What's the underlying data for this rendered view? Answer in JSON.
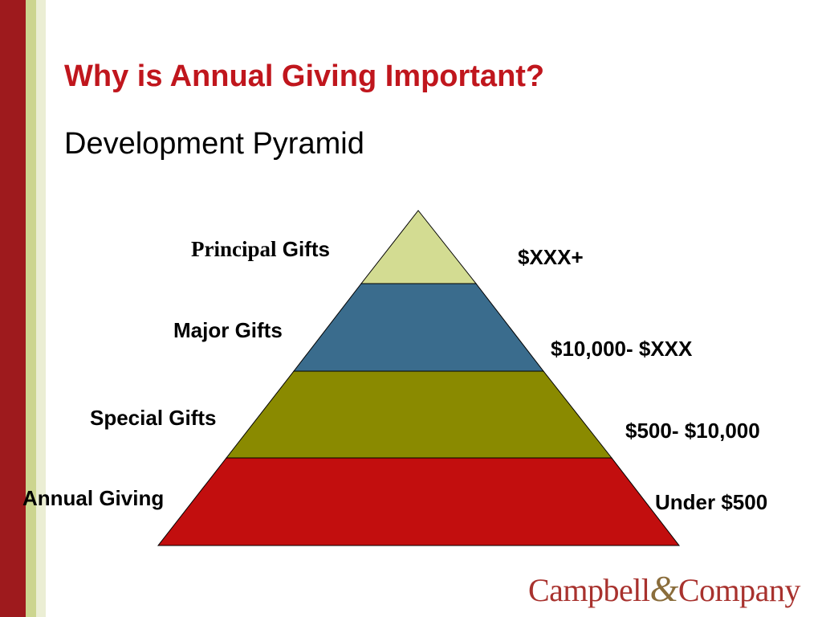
{
  "slide": {
    "title": "Why is Annual Giving Important?",
    "subtitle": "Development Pyramid"
  },
  "pyramid": {
    "tiers": [
      {
        "name": "Principal",
        "name_suffix": " Gifts",
        "range": "$XXX+",
        "color": "#d3dc92"
      },
      {
        "name": "Major Gifts",
        "range": "$10,000- $XXX",
        "color": "#3a6c8d"
      },
      {
        "name": "Special Gifts",
        "range": "$500- $10,000",
        "color": "#8a8a00"
      },
      {
        "name": "Annual Giving",
        "range": "Under $500",
        "color": "#c20e0e"
      }
    ]
  },
  "logo": {
    "part1": "Campbell",
    "amp": "&",
    "part2": "Company"
  },
  "colors": {
    "title": "#c0161d",
    "band_red": "#9e1a1d",
    "band_green": "#ccd58f",
    "band_pale": "#ebeed4"
  }
}
